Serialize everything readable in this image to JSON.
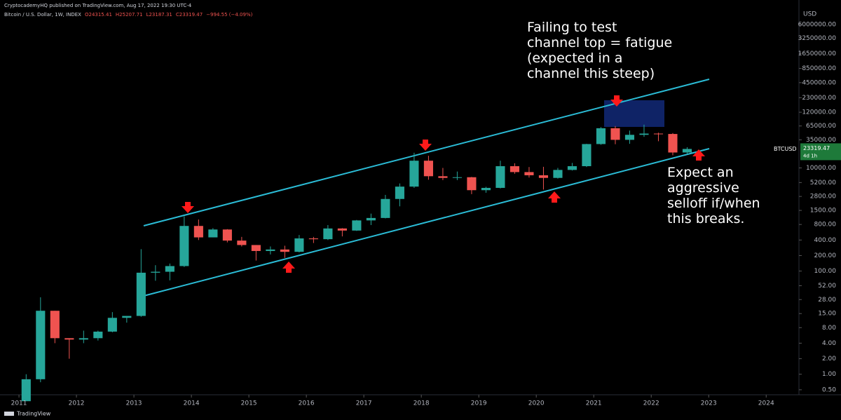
{
  "header": {
    "publisher": "CryptocademyHQ published on TradingView.com, Aug 17, 2022 19:30 UTC-4",
    "legend": [
      "Bitcoin / U.S. Dollar, 1W, INDEX",
      "O24315.41",
      "H25207.71",
      "L23187.31",
      "C23319.47",
      "−994.55 (−4.09%)"
    ],
    "brand": "TradingView"
  },
  "chart_data": {
    "type": "candlestick",
    "log_scale": true,
    "currency": "USD",
    "symbol": "BTCUSD",
    "countdown": "4d 1h",
    "up_color": "#26a69a",
    "down_color": "#ef5350",
    "x": [
      2011.0,
      2011.25,
      2011.5,
      2011.75,
      2012.0,
      2012.25,
      2012.5,
      2012.75,
      2013.0,
      2013.25,
      2013.5,
      2013.75,
      2014.0,
      2014.25,
      2014.5,
      2014.75,
      2015.0,
      2015.25,
      2015.5,
      2015.75,
      2016.0,
      2016.25,
      2016.5,
      2016.75,
      2017.0,
      2017.25,
      2017.5,
      2017.75,
      2018.0,
      2018.25,
      2018.5,
      2018.75,
      2019.0,
      2019.25,
      2019.5,
      2019.75,
      2020.0,
      2020.25,
      2020.5,
      2020.75,
      2021.0,
      2021.25,
      2021.5,
      2021.75,
      2022.0,
      2022.25,
      2022.5
    ],
    "open": [
      0.3,
      0.8,
      17,
      5,
      4.7,
      5,
      6.7,
      12.4,
      13.5,
      93,
      97,
      125,
      750,
      450,
      640,
      390,
      320,
      245,
      262,
      236,
      430,
      415,
      670,
      610,
      960,
      1070,
      2500,
      4340,
      13800,
      6900,
      6400,
      6600,
      3700,
      4100,
      10800,
      8300,
      7200,
      6400,
      9140,
      10800,
      29000,
      58800,
      35000,
      43800,
      46300,
      45500,
      19900
    ],
    "high": [
      1,
      31,
      17,
      5,
      7,
      7,
      16,
      13.5,
      266,
      130,
      140,
      1150,
      1000,
      680,
      650,
      460,
      320,
      300,
      310,
      500,
      460,
      780,
      680,
      980,
      1300,
      3000,
      5000,
      19700,
      17200,
      9990,
      8500,
      6700,
      4300,
      13800,
      12300,
      10400,
      10500,
      10000,
      12500,
      29300,
      61700,
      64800,
      52900,
      69000,
      48200,
      47400,
      25200
    ],
    "low": [
      0.3,
      0.7,
      4,
      2,
      4,
      4.5,
      6.5,
      10,
      13,
      65,
      66,
      120,
      400,
      450,
      360,
      300,
      160,
      210,
      180,
      230,
      350,
      400,
      470,
      600,
      780,
      1050,
      1800,
      4100,
      5900,
      5800,
      5800,
      3100,
      3300,
      4000,
      7700,
      6500,
      3800,
      6200,
      8900,
      10400,
      28100,
      28800,
      29300,
      40000,
      32900,
      17600,
      18600
    ],
    "close": [
      0.8,
      17,
      5,
      4.7,
      5,
      6.7,
      12.4,
      13.5,
      93,
      97,
      125,
      750,
      450,
      640,
      390,
      320,
      245,
      262,
      236,
      430,
      415,
      670,
      610,
      960,
      1070,
      2500,
      4340,
      13800,
      6900,
      6400,
      6600,
      3700,
      4100,
      10800,
      8300,
      7200,
      6400,
      9140,
      10800,
      29000,
      58800,
      35000,
      43800,
      46300,
      45500,
      19900,
      23319.47
    ],
    "xlim": [
      2010.67,
      2024.57
    ],
    "xticks": [
      2011,
      2012,
      2013,
      2014,
      2015,
      2016,
      2017,
      2018,
      2019,
      2020,
      2021,
      2022,
      2023,
      2024
    ],
    "ylim": [
      0.4,
      18000000
    ],
    "yticks": [
      {
        "value": 6000000,
        "label": "6000000.00"
      },
      {
        "value": 3250000,
        "label": "3250000.00"
      },
      {
        "value": 1650000,
        "label": "1650000.00"
      },
      {
        "value": 850000,
        "label": "850000.00"
      },
      {
        "value": 450000,
        "label": "450000.00"
      },
      {
        "value": 230000,
        "label": "230000.00"
      },
      {
        "value": 120000,
        "label": "120000.00"
      },
      {
        "value": 65000,
        "label": "65000.00"
      },
      {
        "value": 35000,
        "label": "35000.00"
      },
      {
        "value": 10000,
        "label": "10000.00"
      },
      {
        "value": 5200,
        "label": "5200.00"
      },
      {
        "value": 2800,
        "label": "2800.00"
      },
      {
        "value": 1500,
        "label": "1500.00"
      },
      {
        "value": 800,
        "label": "800.00"
      },
      {
        "value": 400,
        "label": "400.00"
      },
      {
        "value": 200,
        "label": "200.00"
      },
      {
        "value": 100,
        "label": "100.00"
      },
      {
        "value": 52,
        "label": "52.00"
      },
      {
        "value": 28,
        "label": "28.00"
      },
      {
        "value": 15,
        "label": "15.00"
      },
      {
        "value": 8,
        "label": "8.00"
      },
      {
        "value": 4,
        "label": "4.00"
      },
      {
        "value": 2,
        "label": "2.00"
      },
      {
        "value": 1,
        "label": "1.00"
      },
      {
        "value": 0.5,
        "label": "0.50"
      }
    ],
    "annotations": [
      {
        "lines": [
          "Failing to test",
          "channel top = fatigue",
          "(expected in a",
          "channel this steep)"
        ]
      },
      {
        "lines": [
          "Expect an",
          "aggressive",
          "selloff if/when",
          "this breaks."
        ]
      }
    ]
  }
}
